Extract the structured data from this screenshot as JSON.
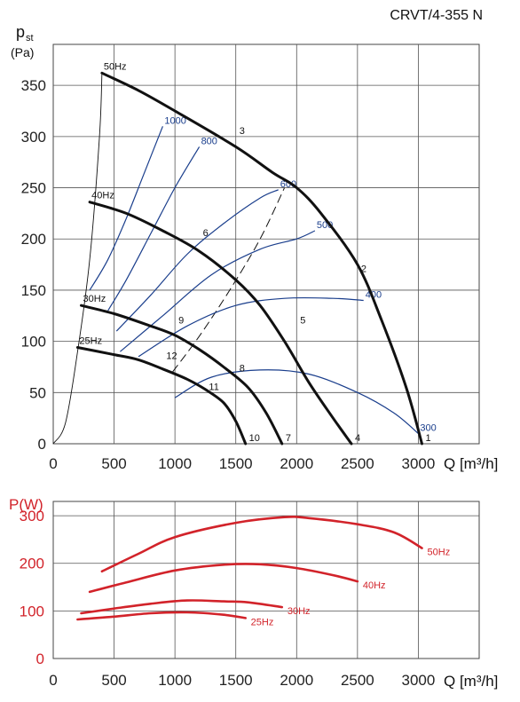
{
  "title": "CRVT/4-355 N",
  "chart_data": [
    {
      "type": "line",
      "name": "pressure",
      "ylabel_main": "p",
      "ylabel_sub": "st",
      "ylabel_unit": "(Pa)",
      "xlabel": "Q [m³/h]",
      "xlim": [
        0,
        3500
      ],
      "ylim": [
        0,
        390
      ],
      "xticks": [
        0,
        500,
        1000,
        1500,
        2000,
        2500,
        3000
      ],
      "yticks": [
        0,
        50,
        100,
        150,
        200,
        250,
        300,
        350
      ],
      "grid": true,
      "series": [
        {
          "name": "50Hz",
          "points": [
            [
              400,
              362
            ],
            [
              700,
              345
            ],
            [
              1000,
              325
            ],
            [
              1500,
              290
            ],
            [
              1800,
              265
            ],
            [
              2000,
              250
            ],
            [
              2200,
              225
            ],
            [
              2500,
              175
            ],
            [
              2700,
              120
            ],
            [
              2900,
              55
            ],
            [
              3030,
              0
            ]
          ]
        },
        {
          "name": "40Hz",
          "points": [
            [
              300,
              236
            ],
            [
              600,
              225
            ],
            [
              900,
              208
            ],
            [
              1200,
              188
            ],
            [
              1500,
              160
            ],
            [
              1700,
              135
            ],
            [
              1900,
              100
            ],
            [
              2100,
              60
            ],
            [
              2300,
              25
            ],
            [
              2450,
              0
            ]
          ]
        },
        {
          "name": "30Hz",
          "points": [
            [
              230,
              135
            ],
            [
              500,
              127
            ],
            [
              800,
              115
            ],
            [
              1000,
              106
            ],
            [
              1200,
              92
            ],
            [
              1400,
              75
            ],
            [
              1600,
              55
            ],
            [
              1750,
              30
            ],
            [
              1880,
              0
            ]
          ]
        },
        {
          "name": "25Hz",
          "points": [
            [
              200,
              94
            ],
            [
              500,
              87
            ],
            [
              700,
              82
            ],
            [
              900,
              73
            ],
            [
              1100,
              63
            ],
            [
              1250,
              53
            ],
            [
              1400,
              40
            ],
            [
              1500,
              22
            ],
            [
              1580,
              0
            ]
          ]
        }
      ],
      "efficiency_curves": [
        {
          "name": "1000",
          "points": [
            [
              300,
              150
            ],
            [
              450,
              180
            ],
            [
              600,
              220
            ],
            [
              750,
              265
            ],
            [
              900,
              310
            ]
          ]
        },
        {
          "name": "800",
          "points": [
            [
              450,
              130
            ],
            [
              600,
              160
            ],
            [
              800,
              205
            ],
            [
              1000,
              250
            ],
            [
              1200,
              290
            ]
          ]
        },
        {
          "name": "600",
          "points": [
            [
              520,
              110
            ],
            [
              800,
              145
            ],
            [
              1100,
              185
            ],
            [
              1400,
              215
            ],
            [
              1700,
              240
            ],
            [
              1850,
              248
            ]
          ]
        },
        {
          "name": "500",
          "points": [
            [
              550,
              90
            ],
            [
              900,
              125
            ],
            [
              1300,
              165
            ],
            [
              1700,
              190
            ],
            [
              2000,
              200
            ],
            [
              2150,
              208
            ]
          ]
        },
        {
          "name": "400",
          "points": [
            [
              700,
              85
            ],
            [
              1100,
              115
            ],
            [
              1500,
              135
            ],
            [
              1900,
              142
            ],
            [
              2300,
              142
            ],
            [
              2550,
              140
            ]
          ]
        },
        {
          "name": "300",
          "points": [
            [
              1000,
              45
            ],
            [
              1300,
              65
            ],
            [
              1700,
              72
            ],
            [
              2100,
              68
            ],
            [
              2500,
              50
            ],
            [
              2800,
              30
            ],
            [
              3000,
              10
            ]
          ]
        }
      ],
      "system_curve": {
        "points": [
          [
            980,
            70
          ],
          [
            1200,
            105
          ],
          [
            1450,
            150
          ],
          [
            1700,
            200
          ],
          [
            1900,
            250
          ]
        ]
      },
      "limit_curve": {
        "points": [
          [
            0,
            0
          ],
          [
            100,
            20
          ],
          [
            200,
            90
          ],
          [
            300,
            180
          ],
          [
            380,
            300
          ],
          [
            400,
            362
          ]
        ]
      },
      "operating_points": [
        {
          "label": "1",
          "x": 3030,
          "y": 0
        },
        {
          "label": "2",
          "x": 2500,
          "y": 165
        },
        {
          "label": "3",
          "x": 1500,
          "y": 300
        },
        {
          "label": "4",
          "x": 2450,
          "y": 0
        },
        {
          "label": "5",
          "x": 2000,
          "y": 115
        },
        {
          "label": "6",
          "x": 1200,
          "y": 200
        },
        {
          "label": "7",
          "x": 1880,
          "y": 0
        },
        {
          "label": "8",
          "x": 1500,
          "y": 68
        },
        {
          "label": "9",
          "x": 1000,
          "y": 115
        },
        {
          "label": "10",
          "x": 1580,
          "y": 0
        },
        {
          "label": "11",
          "x": 1250,
          "y": 50
        },
        {
          "label": "12",
          "x": 900,
          "y": 80
        }
      ]
    },
    {
      "type": "line",
      "name": "power",
      "ylabel": "P(W)",
      "xlabel": "Q [m³/h]",
      "xlim": [
        0,
        3500
      ],
      "ylim": [
        0,
        330
      ],
      "xticks": [
        0,
        500,
        1000,
        1500,
        2000,
        2500,
        3000
      ],
      "yticks": [
        0,
        100,
        200,
        300
      ],
      "grid": true,
      "series": [
        {
          "name": "50Hz",
          "points": [
            [
              400,
              183
            ],
            [
              700,
              220
            ],
            [
              1000,
              255
            ],
            [
              1500,
              285
            ],
            [
              1900,
              297
            ],
            [
              2100,
              295
            ],
            [
              2500,
              282
            ],
            [
              2800,
              265
            ],
            [
              3030,
              232
            ]
          ]
        },
        {
          "name": "40Hz",
          "points": [
            [
              300,
              140
            ],
            [
              600,
              160
            ],
            [
              1000,
              185
            ],
            [
              1400,
              197
            ],
            [
              1700,
              198
            ],
            [
              2000,
              190
            ],
            [
              2300,
              175
            ],
            [
              2500,
              162
            ]
          ]
        },
        {
          "name": "30Hz",
          "points": [
            [
              230,
              95
            ],
            [
              500,
              105
            ],
            [
              800,
              115
            ],
            [
              1100,
              122
            ],
            [
              1400,
              120
            ],
            [
              1600,
              118
            ],
            [
              1880,
              108
            ]
          ]
        },
        {
          "name": "25Hz",
          "points": [
            [
              200,
              82
            ],
            [
              500,
              88
            ],
            [
              800,
              95
            ],
            [
              1100,
              97
            ],
            [
              1400,
              92
            ],
            [
              1580,
              85
            ]
          ]
        }
      ]
    }
  ]
}
